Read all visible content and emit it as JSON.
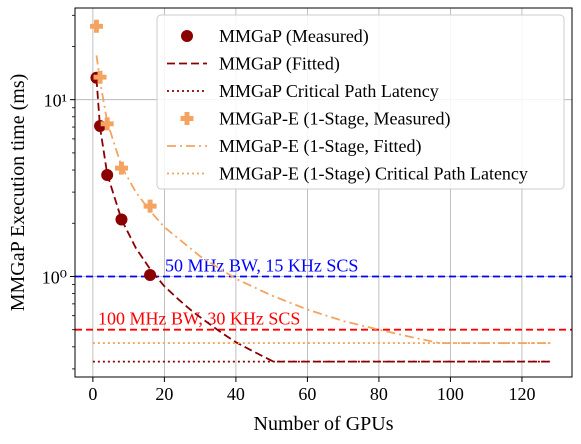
{
  "chart_data": {
    "type": "line",
    "xlabel": "Number of GPUs",
    "ylabel": "MMGaP Execution time (ms)",
    "xlim": [
      -5,
      134
    ],
    "ylim": [
      0.27,
      33
    ],
    "yscale": "log",
    "grid": true,
    "legend_position": "top-right",
    "x_ticks": [
      0,
      20,
      40,
      60,
      80,
      100,
      120
    ],
    "x_tick_labels": [
      "0",
      "20",
      "40",
      "60",
      "80",
      "100",
      "120"
    ],
    "y_ticks": [
      1,
      10
    ],
    "y_tick_labels": [
      "10⁰",
      "10¹"
    ],
    "series": [
      {
        "name": "MMGaP (Measured)",
        "kind": "points",
        "marker": "circle",
        "color": "#8b0000",
        "x": [
          1,
          2,
          4,
          8,
          16
        ],
        "y": [
          13.3,
          7.1,
          3.75,
          2.1,
          1.02
        ]
      },
      {
        "name": "MMGaP (Fitted)",
        "kind": "line",
        "dash": "dashed",
        "color": "#8b0000",
        "x": [
          1,
          2,
          4,
          8,
          12,
          16,
          20,
          24,
          28,
          32,
          36,
          40,
          44,
          48,
          50.5,
          60,
          70,
          80,
          90,
          100,
          110,
          120,
          128
        ],
        "y": [
          13.1,
          7.0,
          3.8,
          2.1,
          1.45,
          1.1,
          0.88,
          0.74,
          0.63,
          0.55,
          0.48,
          0.425,
          0.385,
          0.35,
          0.33,
          0.33,
          0.33,
          0.33,
          0.33,
          0.33,
          0.33,
          0.33,
          0.33
        ]
      },
      {
        "name": "MMGaP Critical Path Latency",
        "kind": "hline",
        "dash": "dotted",
        "color": "#8b0000",
        "y": 0.33
      },
      {
        "name": "MMGaP-E (1-Stage, Measured)",
        "kind": "points",
        "marker": "plus",
        "color": "#f4a460",
        "x": [
          1,
          2,
          4,
          8,
          16
        ],
        "y": [
          26,
          13.4,
          7.3,
          4.1,
          2.5
        ]
      },
      {
        "name": "MMGaP-E (1-Stage, Fitted)",
        "kind": "line",
        "dash": "dashdot",
        "color": "#f4a460",
        "x": [
          1,
          2,
          4,
          8,
          12,
          16,
          20,
          30,
          40,
          50,
          60,
          70,
          80,
          90,
          97,
          100,
          110,
          120,
          128
        ],
        "y": [
          17.8,
          12.8,
          7.5,
          4.2,
          3.0,
          2.35,
          1.9,
          1.3,
          0.97,
          0.78,
          0.65,
          0.56,
          0.5,
          0.45,
          0.42,
          0.42,
          0.42,
          0.42,
          0.42
        ]
      },
      {
        "name": "MMGaP-E (1-Stage) Critical Path Latency",
        "kind": "hline",
        "dash": "dotted",
        "color": "#f4a460",
        "y": 0.42
      }
    ],
    "reference_lines": [
      {
        "label": "50 MHz BW, 15 KHz SCS",
        "y": 1.0,
        "color": "#0000ff"
      },
      {
        "label": "100 MHz BW, 30 KHz SCS",
        "y": 0.5,
        "color": "#ff0000"
      }
    ]
  }
}
